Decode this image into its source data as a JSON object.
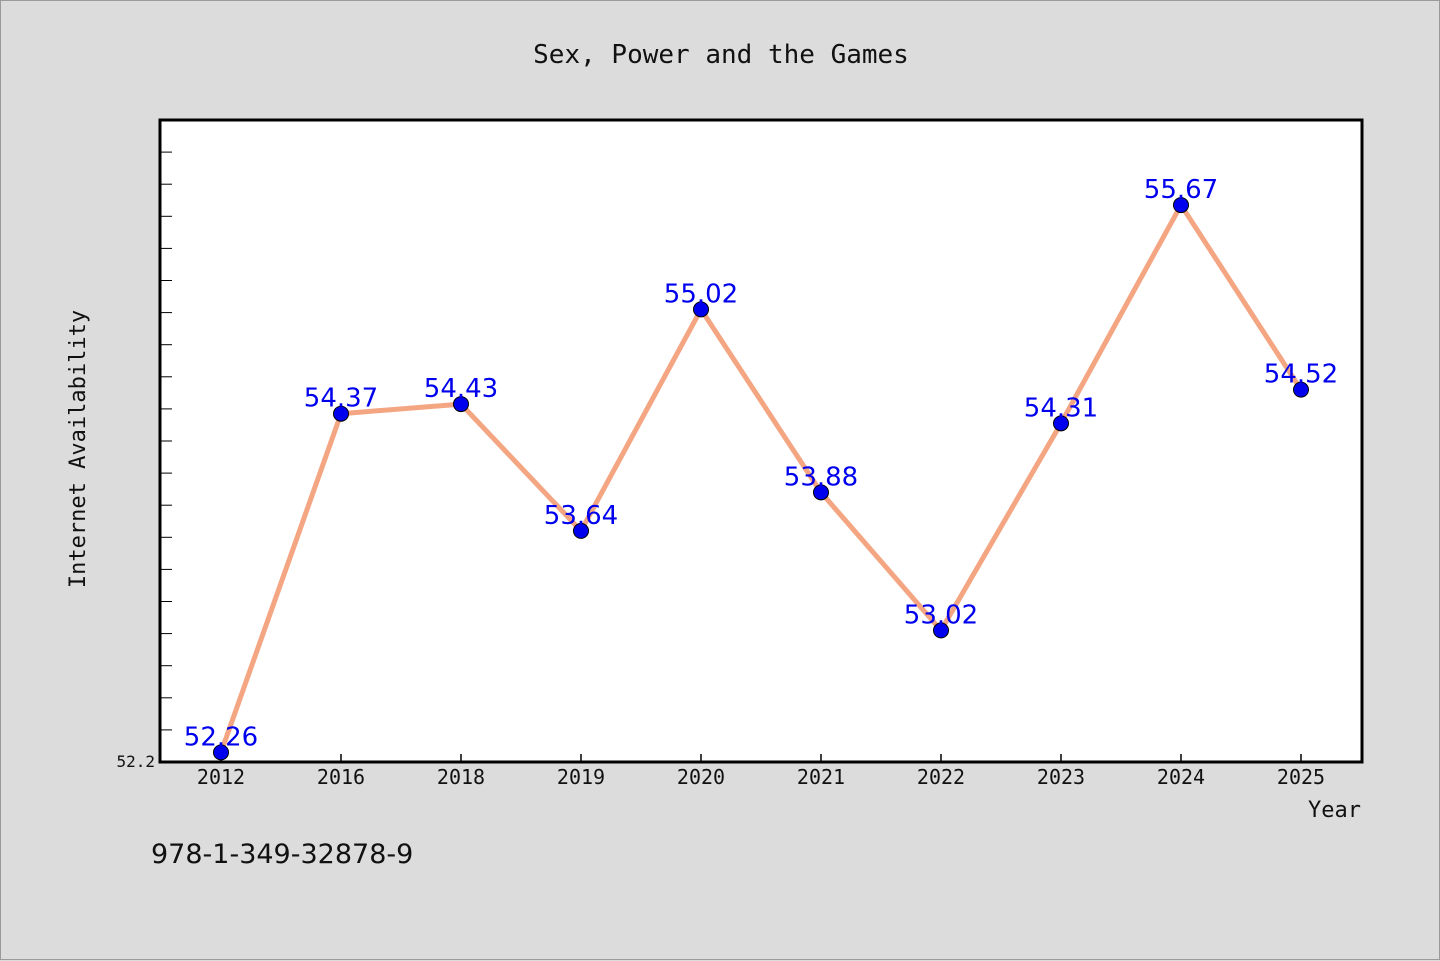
{
  "chart_data": {
    "type": "line",
    "title": "Sex, Power and the Games",
    "xlabel": "Year",
    "ylabel": "Internet Availability",
    "categories": [
      "2012",
      "2016",
      "2018",
      "2019",
      "2020",
      "2021",
      "2022",
      "2023",
      "2024",
      "2025"
    ],
    "series": [
      {
        "values": [
          52.26,
          54.37,
          54.43,
          53.64,
          55.02,
          53.88,
          53.02,
          54.31,
          55.67,
          54.52
        ],
        "data_labels": [
          "52.26",
          "54.37",
          "54.43",
          "53.64",
          "55.02",
          "53.88",
          "53.02",
          "54.31",
          "55.67",
          "54.52"
        ]
      }
    ],
    "ylim": [
      52.2,
      56.2
    ],
    "y_tick_labels": [
      "52.2"
    ],
    "grid": false,
    "legend": "none",
    "colors": {
      "line": "#f4a582",
      "marker": "#0000ee",
      "label": "#0000ee",
      "plot_background": "#ffffff",
      "page_background": "#dcdcdc"
    }
  },
  "footer": {
    "isbn": "978-1-349-32878-9"
  }
}
